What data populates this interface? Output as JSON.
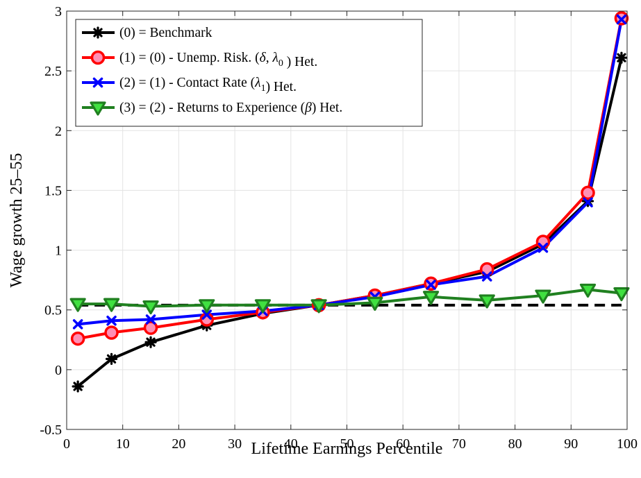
{
  "chart_data": {
    "type": "line",
    "xlabel": "Lifetime Earnings Percentile",
    "ylabel": "Wage growth 25–55",
    "xlim": [
      0,
      100
    ],
    "ylim": [
      -0.5,
      3
    ],
    "xticks": [
      0,
      10,
      20,
      30,
      40,
      50,
      60,
      70,
      80,
      90,
      100
    ],
    "yticks": [
      -0.5,
      0,
      0.5,
      1,
      1.5,
      2,
      2.5,
      3
    ],
    "ytick_labels": [
      "-0.5",
      "0",
      "0.5",
      "1",
      "1.5",
      "2",
      "2.5",
      "3"
    ],
    "grid": true,
    "legend_position": "top-left",
    "x": [
      2,
      8,
      15,
      25,
      35,
      45,
      55,
      65,
      75,
      85,
      93,
      99
    ],
    "series": [
      {
        "name": "(0) = Benchmark",
        "legend_parts": [
          "(0) = Benchmark"
        ],
        "color": "#000000",
        "marker": "asterisk",
        "values": [
          -0.14,
          0.09,
          0.23,
          0.37,
          0.47,
          0.54,
          0.62,
          0.72,
          0.82,
          1.05,
          1.41,
          2.61
        ]
      },
      {
        "name": "(1) = (0) - Unemp. Risk. (δ, λ0 ) Het.",
        "legend_parts": [
          "(1) = (0) - Unemp. Risk. (",
          "δ",
          ", ",
          "λ",
          "0",
          " ) Het."
        ],
        "color": "#ff0000",
        "marker": "circle",
        "marker_fill": "#ff8fb5",
        "values": [
          0.26,
          0.31,
          0.35,
          0.42,
          0.48,
          0.54,
          0.62,
          0.72,
          0.84,
          1.07,
          1.48,
          2.94
        ]
      },
      {
        "name": "(2) = (1) - Contact Rate (λ1) Het.",
        "legend_parts": [
          "(2) = (1) - Contact Rate (",
          "λ",
          "1",
          ") Het."
        ],
        "color": "#0000ff",
        "marker": "x",
        "values": [
          0.38,
          0.41,
          0.42,
          0.46,
          0.49,
          0.54,
          0.61,
          0.71,
          0.78,
          1.02,
          1.4,
          2.93
        ]
      },
      {
        "name": "(3) = (2) - Returns to Experience (β) Het.",
        "legend_parts": [
          "(3) = (2) - Returns to Experience (",
          "β",
          ") Het."
        ],
        "color": "#208020",
        "marker": "triangle-down",
        "marker_fill": "#40e040",
        "values": [
          0.55,
          0.55,
          0.53,
          0.54,
          0.54,
          0.54,
          0.56,
          0.61,
          0.58,
          0.62,
          0.67,
          0.64
        ]
      }
    ],
    "reference_line": {
      "style": "dashed",
      "color": "#000000",
      "y": 0.54,
      "x_range": [
        2,
        99
      ]
    }
  }
}
